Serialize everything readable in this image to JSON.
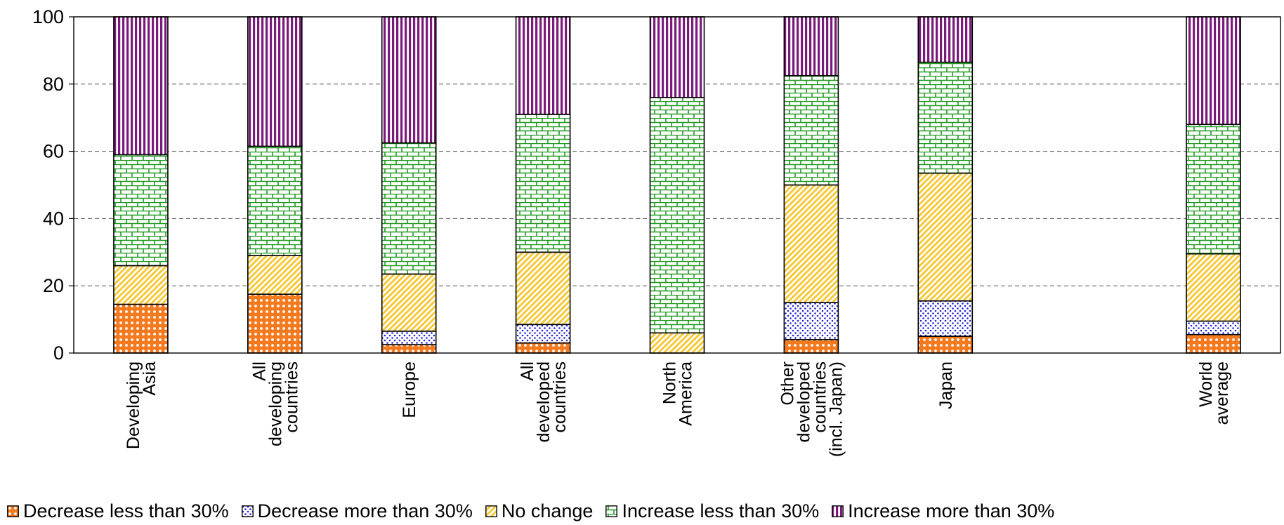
{
  "chart_data": {
    "type": "bar",
    "stacked": true,
    "categories": [
      [
        "Developing",
        "Asia"
      ],
      [
        "All",
        "developing",
        "countries"
      ],
      [
        "Europe"
      ],
      [
        "All",
        "developed",
        "countries"
      ],
      [
        "North",
        "America"
      ],
      [
        "Other",
        "developed",
        "countries",
        "(incl. Japan)"
      ],
      [
        "Japan"
      ],
      [],
      [
        "World",
        "average"
      ]
    ],
    "series": [
      {
        "name": "Decrease less than 30%",
        "color": "#f47a20",
        "pattern": "dots-large",
        "values": [
          14.5,
          17.5,
          2.5,
          3,
          0,
          4,
          5,
          null,
          5.5
        ]
      },
      {
        "name": "Decrease more than 30%",
        "color": "#2323d4",
        "pattern": "dots-small",
        "values": [
          0,
          0,
          4,
          5.5,
          0,
          11,
          10.5,
          null,
          4
        ]
      },
      {
        "name": "No change",
        "color": "#f6c93a",
        "pattern": "diagonal",
        "values": [
          11.5,
          11.5,
          17,
          21.5,
          6,
          35,
          38,
          null,
          20
        ]
      },
      {
        "name": "Increase less than 30%",
        "color": "#1f9a1f",
        "pattern": "brick",
        "values": [
          33,
          32.5,
          39,
          41,
          70,
          32.5,
          33,
          null,
          38.5
        ]
      },
      {
        "name": "Increase more than 30%",
        "color": "#7a1a7a",
        "pattern": "vertical",
        "values": [
          41,
          38.5,
          37.5,
          29,
          24,
          17.5,
          13.5,
          null,
          32
        ]
      }
    ],
    "yticks": [
      0,
      20,
      40,
      60,
      80,
      100
    ],
    "ylim": [
      0,
      100
    ],
    "grid": "horizontal-dashed",
    "legend": "bottom"
  }
}
